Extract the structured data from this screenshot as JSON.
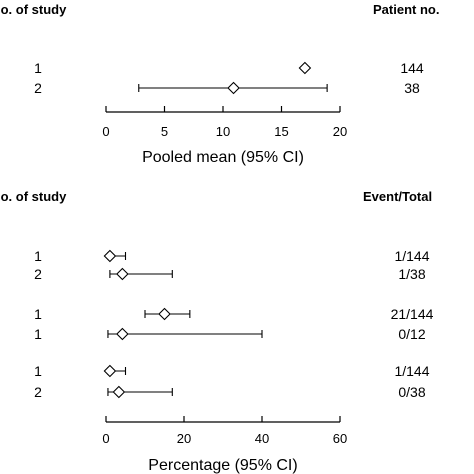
{
  "panels": [
    {
      "left_header": "lo. of study",
      "right_header": "Patient no.",
      "chart_data": {
        "type": "forest",
        "xlabel": "Pooled mean (95% CI)",
        "xlim": [
          0,
          20
        ],
        "xticks": [
          0,
          5,
          10,
          15,
          20
        ],
        "rows": [
          {
            "study": "1",
            "estimate": 17.0,
            "ci": null,
            "right": "144"
          },
          {
            "study": "2",
            "estimate": 10.9,
            "ci": [
              2.8,
              18.9
            ],
            "right": "38"
          }
        ]
      }
    },
    {
      "left_header": "lo. of study",
      "right_header": "Event/Total",
      "chart_data": {
        "type": "forest",
        "xlabel": "Percentage (95% CI)",
        "xlim": [
          0,
          60
        ],
        "xticks": [
          0,
          20,
          40,
          60
        ],
        "groups": [
          [
            {
              "study": "1",
              "estimate": 1.0,
              "ci": [
                0.5,
                5.0
              ],
              "right": "1/144"
            },
            {
              "study": "2",
              "estimate": 4.2,
              "ci": [
                1.0,
                17.0
              ],
              "right": "1/38"
            }
          ],
          [
            {
              "study": "1",
              "estimate": 15.0,
              "ci": [
                10.0,
                21.5
              ],
              "right": "21/144"
            },
            {
              "study": "1",
              "estimate": 4.2,
              "ci": [
                0.5,
                40.0
              ],
              "right": "0/12"
            }
          ],
          [
            {
              "study": "1",
              "estimate": 1.0,
              "ci": [
                0.5,
                5.0
              ],
              "right": "1/144"
            },
            {
              "study": "2",
              "estimate": 3.3,
              "ci": [
                0.5,
                17.0
              ],
              "right": "0/38"
            }
          ]
        ]
      }
    }
  ]
}
